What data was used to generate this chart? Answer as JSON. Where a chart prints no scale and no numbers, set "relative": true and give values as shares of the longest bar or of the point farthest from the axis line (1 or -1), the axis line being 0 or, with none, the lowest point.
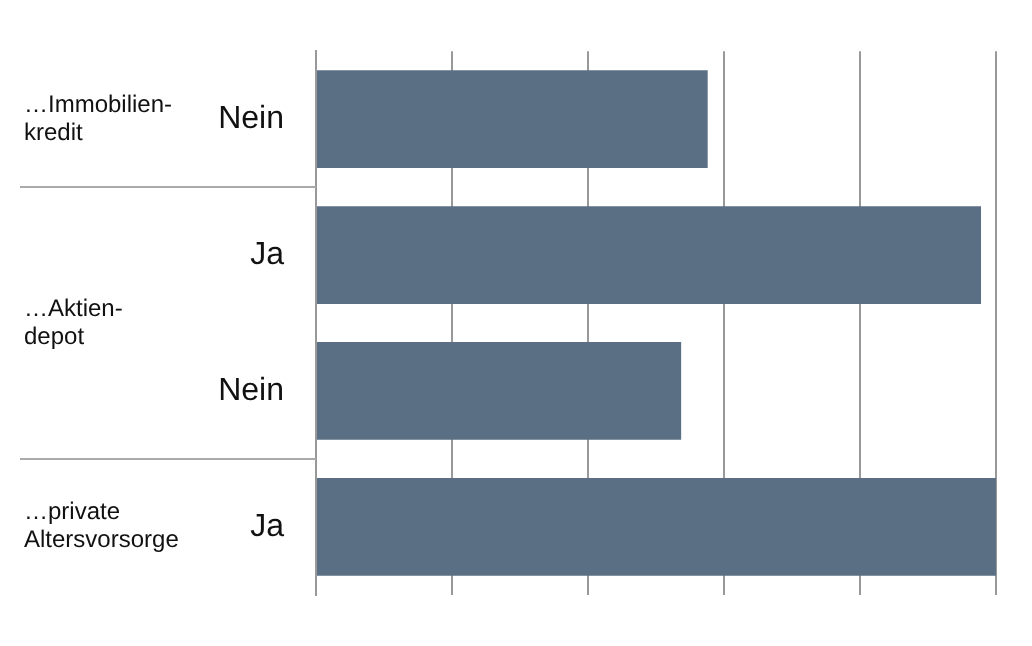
{
  "chart_data": {
    "type": "bar",
    "orientation": "horizontal",
    "relative": true,
    "categories": [
      "Nein",
      "Ja",
      "Nein",
      "Ja"
    ],
    "values": [
      0.576,
      0.978,
      0.537,
      1
    ],
    "color": "#5b6f84",
    "annotations": [
      "…Immobilien-\nkredit",
      "…Aktien-\ndepot",
      "…private\nAltersvorsorge"
    ],
    "grid": "x"
  }
}
